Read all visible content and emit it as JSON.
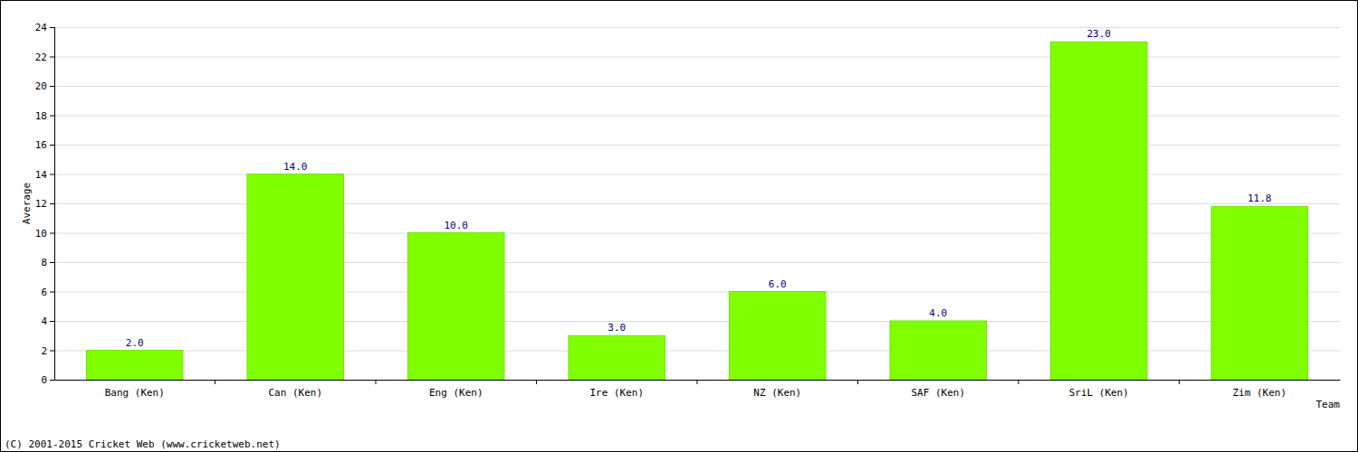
{
  "chart_data": {
    "type": "bar",
    "categories": [
      "Bang (Ken)",
      "Can (Ken)",
      "Eng (Ken)",
      "Ire (Ken)",
      "NZ (Ken)",
      "SAF (Ken)",
      "SriL (Ken)",
      "Zim (Ken)"
    ],
    "values": [
      2.0,
      14.0,
      10.0,
      3.0,
      6.0,
      4.0,
      23.0,
      11.8
    ],
    "value_labels": [
      "2.0",
      "14.0",
      "10.0",
      "3.0",
      "6.0",
      "4.0",
      "23.0",
      "11.8"
    ],
    "data_labels": true,
    "color": "#80ff00",
    "x_label": "Team",
    "y_label": "Average",
    "annotations": [
      "(C) 2001-2015 Cricket Web (www.cricketweb.net)"
    ],
    "ylim": [
      0,
      24
    ],
    "yticks": [
      0,
      2,
      4,
      6,
      8,
      10,
      12,
      14,
      16,
      18,
      20,
      22,
      24
    ],
    "grid": true
  }
}
